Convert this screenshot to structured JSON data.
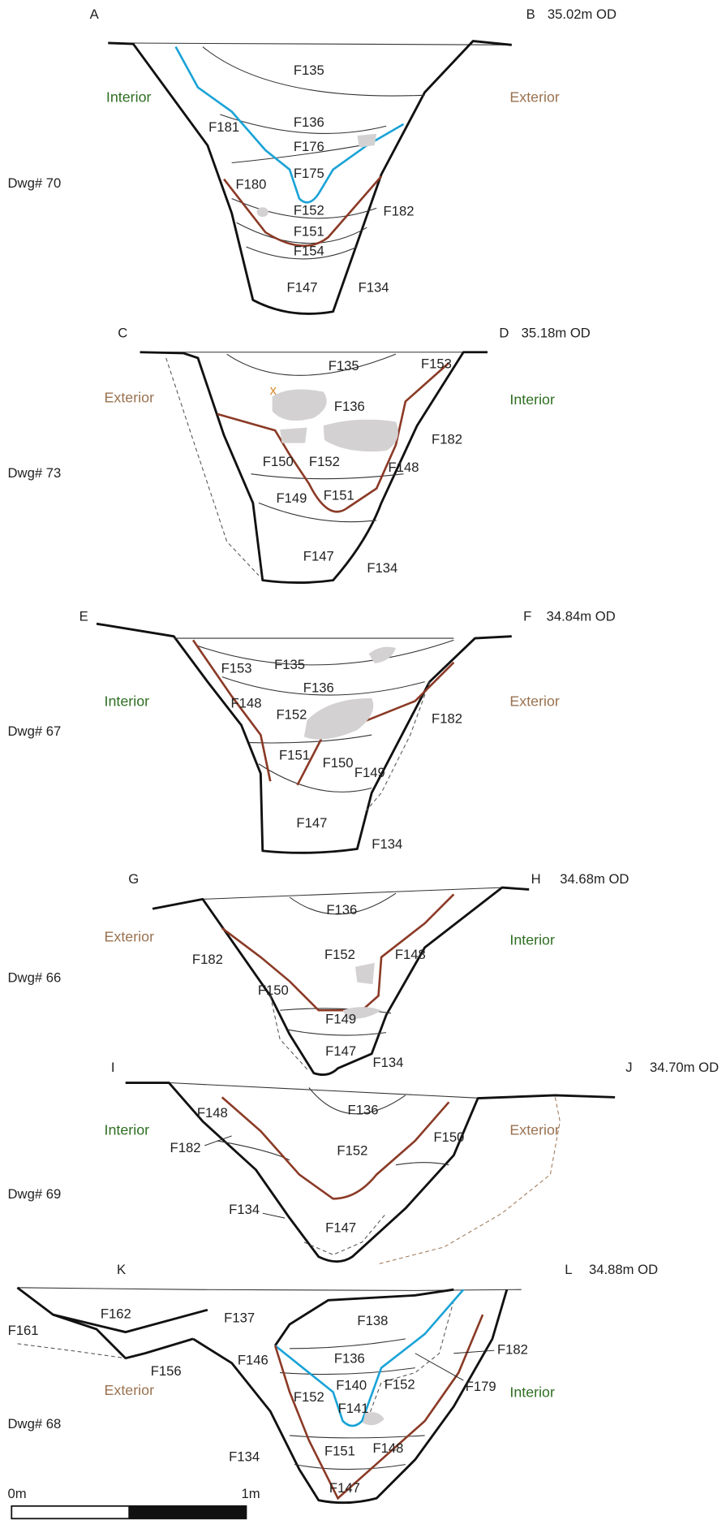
{
  "sections": [
    {
      "left": "A",
      "right": "B",
      "od": "35.02m OD",
      "dwg": "Dwg# 70",
      "left_side": "Interior",
      "right_side": "Exterior",
      "features": [
        "F135",
        "F136",
        "F181",
        "F176",
        "F175",
        "F180",
        "F152",
        "F182",
        "F151",
        "F154",
        "F147",
        "F134"
      ]
    },
    {
      "left": "C",
      "right": "D",
      "od": "35.18m OD",
      "dwg": "Dwg# 73",
      "left_side": "Exterior",
      "right_side": "Interior",
      "marker": "x",
      "features": [
        "F135",
        "F153",
        "F136",
        "F182",
        "F150",
        "F152",
        "F148",
        "F149",
        "F151",
        "F147",
        "F134"
      ]
    },
    {
      "left": "E",
      "right": "F",
      "od": "34.84m OD",
      "dwg": "Dwg# 67",
      "left_side": "Interior",
      "right_side": "Exterior",
      "features": [
        "F153",
        "F135",
        "F136",
        "F148",
        "F152",
        "F182",
        "F151",
        "F150",
        "F149",
        "F147",
        "F134"
      ]
    },
    {
      "left": "G",
      "right": "H",
      "od": "34.68m OD",
      "dwg": "Dwg# 66",
      "left_side": "Exterior",
      "right_side": "Interior",
      "features": [
        "F136",
        "F182",
        "F152",
        "F148",
        "F150",
        "F149",
        "F147",
        "F134"
      ]
    },
    {
      "left": "I",
      "right": "J",
      "od": "34.70m OD",
      "dwg": "Dwg# 69",
      "left_side": "Interior",
      "right_side": "Exterior",
      "features": [
        "F136",
        "F148",
        "F182",
        "F152",
        "F150",
        "F134",
        "F147"
      ]
    },
    {
      "left": "K",
      "right": "L",
      "od": "34.88m OD",
      "dwg": "Dwg# 68",
      "left_side": "Exterior",
      "right_side": "Interior",
      "features": [
        "F162",
        "F161",
        "F137",
        "F138",
        "F156",
        "F146",
        "F136",
        "F182",
        "F140",
        "F152",
        "F152",
        "F179",
        "F141",
        "F151",
        "F148",
        "F134",
        "F147"
      ]
    }
  ],
  "scale": {
    "start": "0m",
    "end": "1m"
  }
}
